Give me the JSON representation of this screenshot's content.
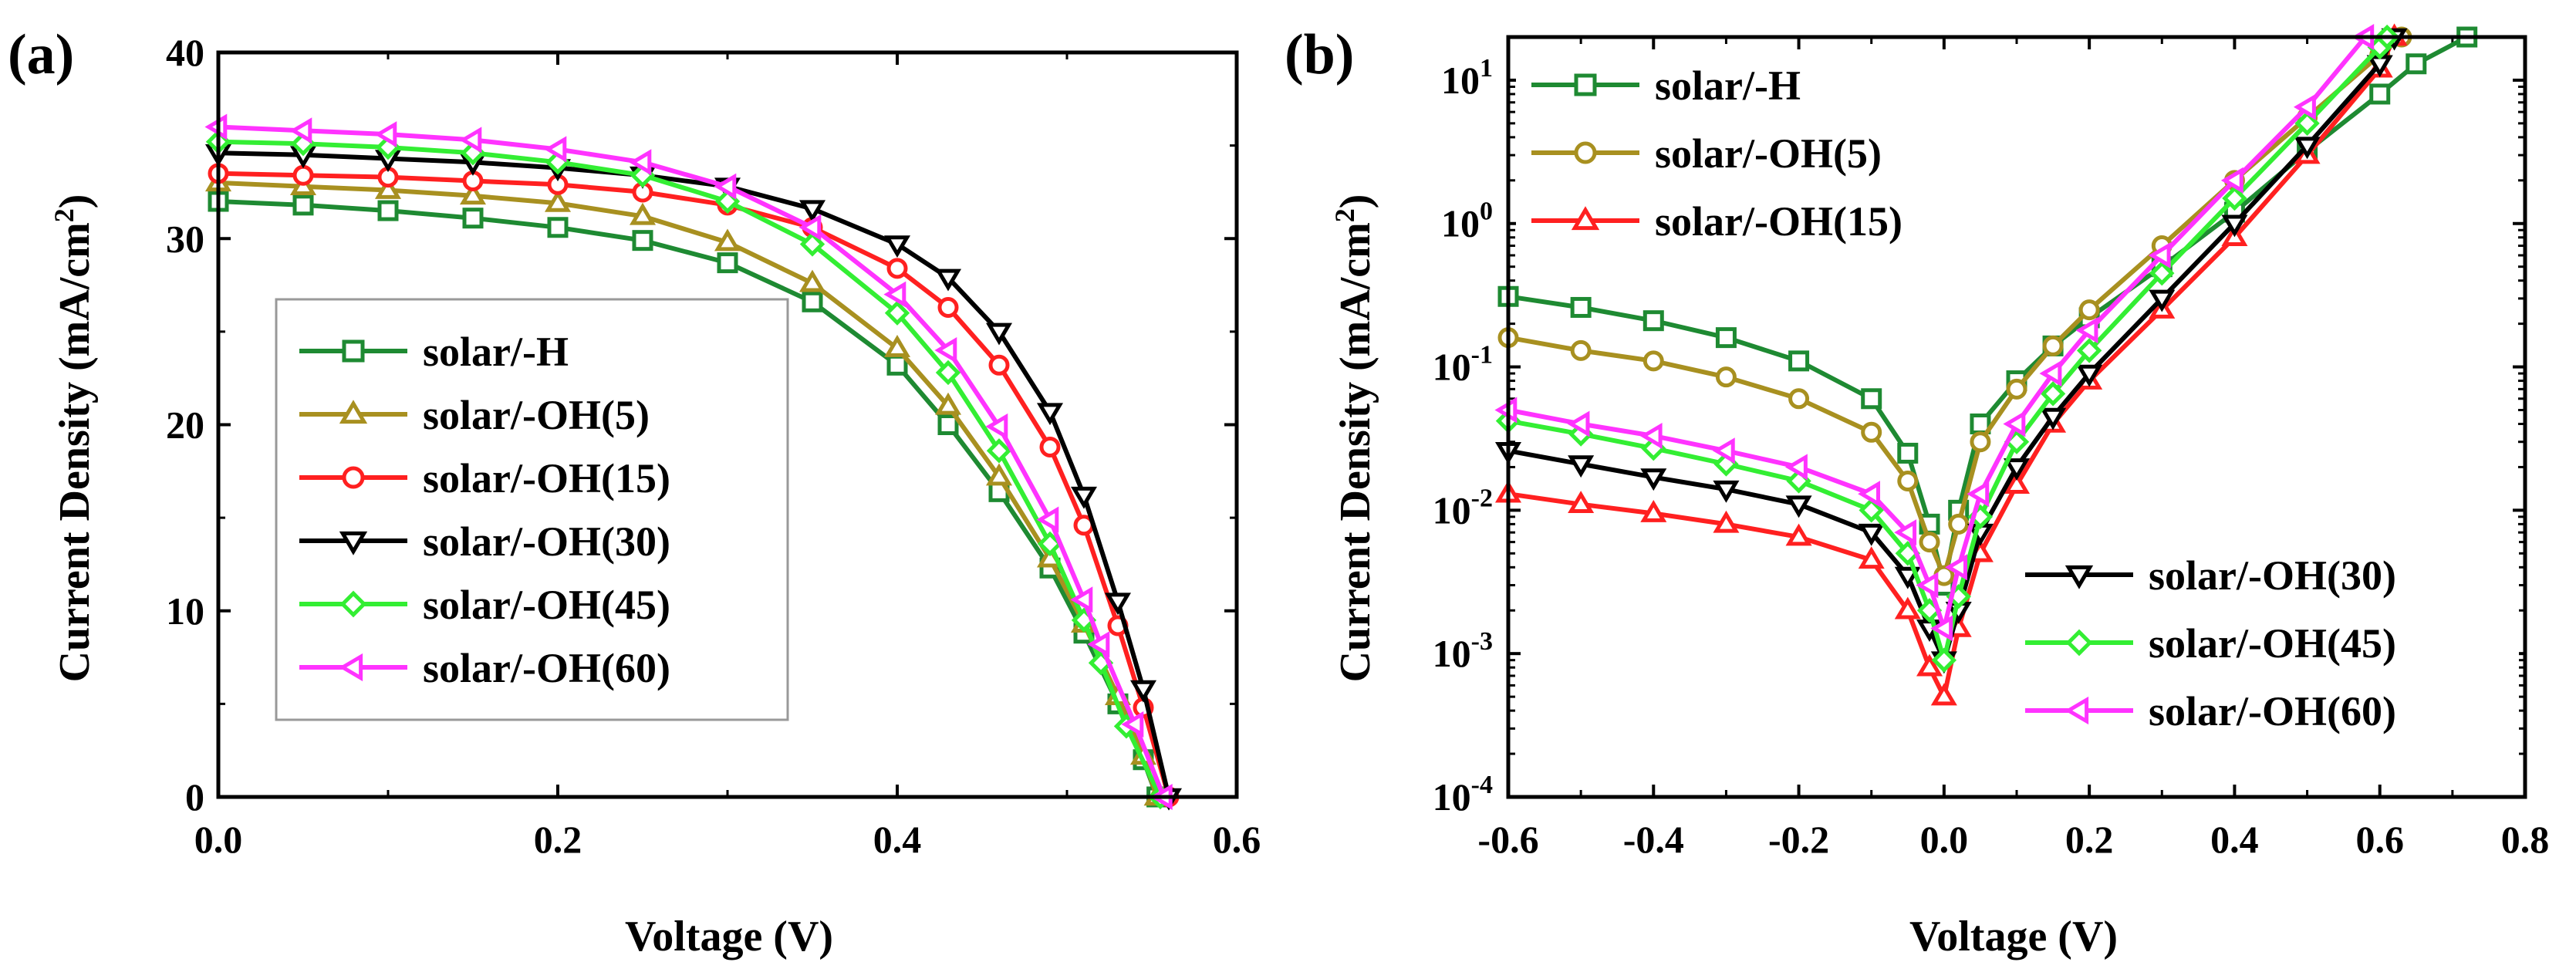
{
  "figure": {
    "panel_a_label": "(a)",
    "panel_b_label": "(b)"
  },
  "chart_data": [
    {
      "id": "a",
      "type": "line",
      "title": "",
      "panel_label": "(a)",
      "xlabel": "Voltage (V)",
      "ylabel": "Current Density (mA/cm",
      "ylabel_sup": "2",
      "ylabel_close": ")",
      "xlim": [
        0.0,
        0.6
      ],
      "ylim": [
        0,
        40
      ],
      "xticks": [
        0.0,
        0.2,
        0.4,
        0.6
      ],
      "xtick_labels": [
        "0.0",
        "0.2",
        "0.4",
        "0.6"
      ],
      "yticks": [
        0,
        10,
        20,
        30,
        40
      ],
      "ytick_labels": [
        "0",
        "10",
        "20",
        "30",
        "40"
      ],
      "grid": false,
      "legend_position": "center-left",
      "series": [
        {
          "name": "solar/-H",
          "color": "#1e8a32",
          "marker": "square",
          "x": [
            0.0,
            0.05,
            0.1,
            0.15,
            0.2,
            0.25,
            0.3,
            0.35,
            0.4,
            0.43,
            0.46,
            0.49,
            0.51,
            0.53,
            0.545,
            0.553
          ],
          "y": [
            32.0,
            31.8,
            31.5,
            31.1,
            30.6,
            29.9,
            28.7,
            26.6,
            23.2,
            20.0,
            16.4,
            12.3,
            8.8,
            5.0,
            2.0,
            0
          ]
        },
        {
          "name": "solar/-OH(5)",
          "color": "#a89020",
          "marker": "triangle-up",
          "x": [
            0.0,
            0.05,
            0.1,
            0.15,
            0.2,
            0.25,
            0.3,
            0.35,
            0.4,
            0.43,
            0.46,
            0.49,
            0.51,
            0.53,
            0.545,
            0.553
          ],
          "y": [
            33.0,
            32.8,
            32.6,
            32.3,
            31.9,
            31.2,
            29.8,
            27.6,
            24.1,
            21.0,
            17.2,
            12.8,
            9.3,
            5.4,
            2.2,
            0
          ]
        },
        {
          "name": "solar/-OH(15)",
          "color": "#ff2020",
          "marker": "circle",
          "x": [
            0.0,
            0.05,
            0.1,
            0.15,
            0.2,
            0.25,
            0.3,
            0.35,
            0.4,
            0.43,
            0.46,
            0.49,
            0.51,
            0.53,
            0.545,
            0.56
          ],
          "y": [
            33.5,
            33.4,
            33.3,
            33.1,
            32.9,
            32.5,
            31.8,
            30.6,
            28.4,
            26.3,
            23.2,
            18.8,
            14.6,
            9.2,
            4.8,
            0
          ]
        },
        {
          "name": "solar/-OH(30)",
          "color": "#000000",
          "marker": "triangle-down",
          "x": [
            0.0,
            0.05,
            0.1,
            0.15,
            0.2,
            0.25,
            0.3,
            0.35,
            0.4,
            0.43,
            0.46,
            0.49,
            0.51,
            0.53,
            0.545,
            0.56
          ],
          "y": [
            34.6,
            34.5,
            34.3,
            34.1,
            33.8,
            33.4,
            32.8,
            31.6,
            29.7,
            27.9,
            25.0,
            20.7,
            16.2,
            10.5,
            5.8,
            0
          ]
        },
        {
          "name": "solar/-OH(45)",
          "color": "#33ee33",
          "marker": "diamond",
          "x": [
            0.0,
            0.05,
            0.1,
            0.15,
            0.2,
            0.25,
            0.3,
            0.35,
            0.4,
            0.43,
            0.46,
            0.49,
            0.51,
            0.52,
            0.535,
            0.555
          ],
          "y": [
            35.2,
            35.1,
            34.9,
            34.6,
            34.1,
            33.4,
            32.0,
            29.7,
            26.0,
            22.8,
            18.6,
            13.6,
            9.5,
            7.2,
            3.8,
            0
          ]
        },
        {
          "name": "solar/-OH(60)",
          "color": "#ff33ff",
          "marker": "triangle-left",
          "x": [
            0.0,
            0.05,
            0.1,
            0.15,
            0.2,
            0.25,
            0.3,
            0.35,
            0.4,
            0.43,
            0.46,
            0.49,
            0.51,
            0.52,
            0.54,
            0.557
          ],
          "y": [
            36.0,
            35.8,
            35.6,
            35.3,
            34.8,
            34.1,
            32.8,
            30.6,
            27.0,
            24.0,
            19.9,
            14.9,
            10.6,
            8.2,
            3.9,
            0
          ]
        }
      ]
    },
    {
      "id": "b",
      "type": "line",
      "title": "",
      "panel_label": "(b)",
      "xlabel": "Voltage (V)",
      "ylabel": "Current Density (mA/cm",
      "ylabel_sup": "2",
      "ylabel_close": ")",
      "yscale": "log",
      "xlim": [
        -0.6,
        0.8
      ],
      "ylim": [
        0.0001,
        20
      ],
      "xticks": [
        -0.6,
        -0.4,
        -0.2,
        0.0,
        0.2,
        0.4,
        0.6,
        0.8
      ],
      "xtick_labels": [
        "-0.6",
        "-0.4",
        "-0.2",
        "0.0",
        "0.2",
        "0.4",
        "0.6",
        "0.8"
      ],
      "yticks": [
        0.0001,
        0.001,
        0.01,
        0.1,
        1,
        10
      ],
      "ytick_labels": [
        {
          "base": "10",
          "exp": "-4"
        },
        {
          "base": "10",
          "exp": "-3"
        },
        {
          "base": "10",
          "exp": "-2"
        },
        {
          "base": "10",
          "exp": "-1"
        },
        {
          "base": "10",
          "exp": "0"
        },
        {
          "base": "10",
          "exp": "1"
        }
      ],
      "grid": false,
      "legend_position": "top-left and bottom-right",
      "series": [
        {
          "name": "solar/-H",
          "color": "#1e8a32",
          "marker": "square",
          "x": [
            -0.6,
            -0.5,
            -0.4,
            -0.3,
            -0.2,
            -0.1,
            -0.05,
            -0.02,
            0.0,
            0.02,
            0.05,
            0.1,
            0.15,
            0.2,
            0.3,
            0.4,
            0.5,
            0.6,
            0.65,
            0.72
          ],
          "y": [
            0.31,
            0.26,
            0.21,
            0.16,
            0.11,
            0.06,
            0.025,
            0.008,
            0.003,
            0.01,
            0.04,
            0.08,
            0.14,
            0.22,
            0.5,
            1.2,
            3.2,
            8.0,
            13.0,
            20.0
          ]
        },
        {
          "name": "solar/-OH(5)",
          "color": "#a89020",
          "marker": "circle",
          "x": [
            -0.6,
            -0.5,
            -0.4,
            -0.3,
            -0.2,
            -0.1,
            -0.05,
            -0.02,
            0.0,
            0.02,
            0.05,
            0.1,
            0.15,
            0.2,
            0.3,
            0.4,
            0.5,
            0.6,
            0.63
          ],
          "y": [
            0.16,
            0.13,
            0.11,
            0.085,
            0.06,
            0.035,
            0.016,
            0.006,
            0.0035,
            0.008,
            0.03,
            0.07,
            0.14,
            0.25,
            0.7,
            2.0,
            5.5,
            15.0,
            20.0
          ]
        },
        {
          "name": "solar/-OH(15)",
          "color": "#ff2020",
          "marker": "triangle-up",
          "x": [
            -0.6,
            -0.5,
            -0.4,
            -0.3,
            -0.2,
            -0.1,
            -0.05,
            -0.02,
            0.0,
            0.02,
            0.05,
            0.1,
            0.15,
            0.2,
            0.3,
            0.4,
            0.5,
            0.6,
            0.62
          ],
          "y": [
            0.013,
            0.011,
            0.0095,
            0.008,
            0.0065,
            0.0045,
            0.002,
            0.0008,
            0.0005,
            0.0015,
            0.005,
            0.015,
            0.04,
            0.08,
            0.25,
            0.8,
            3.0,
            12.0,
            20.0
          ]
        },
        {
          "name": "solar/-OH(30)",
          "color": "#000000",
          "marker": "triangle-down",
          "x": [
            -0.6,
            -0.5,
            -0.4,
            -0.3,
            -0.2,
            -0.1,
            -0.05,
            -0.02,
            0.0,
            0.02,
            0.05,
            0.1,
            0.15,
            0.2,
            0.3,
            0.4,
            0.5,
            0.6,
            0.62
          ],
          "y": [
            0.026,
            0.021,
            0.017,
            0.014,
            0.011,
            0.007,
            0.0035,
            0.0015,
            0.0009,
            0.002,
            0.007,
            0.02,
            0.045,
            0.09,
            0.3,
            1.0,
            3.5,
            13.0,
            20.0
          ]
        },
        {
          "name": "solar/-OH(45)",
          "color": "#33ee33",
          "marker": "diamond",
          "x": [
            -0.6,
            -0.5,
            -0.4,
            -0.3,
            -0.2,
            -0.1,
            -0.05,
            -0.02,
            0.0,
            0.02,
            0.05,
            0.1,
            0.15,
            0.2,
            0.3,
            0.4,
            0.5,
            0.6,
            0.61
          ],
          "y": [
            0.042,
            0.034,
            0.027,
            0.021,
            0.016,
            0.01,
            0.005,
            0.002,
            0.0009,
            0.0025,
            0.009,
            0.03,
            0.065,
            0.13,
            0.45,
            1.5,
            5.0,
            17.0,
            20.0
          ]
        },
        {
          "name": "solar/-OH(60)",
          "color": "#ff33ff",
          "marker": "triangle-left",
          "x": [
            -0.6,
            -0.5,
            -0.4,
            -0.3,
            -0.2,
            -0.1,
            -0.05,
            -0.02,
            0.0,
            0.02,
            0.05,
            0.1,
            0.15,
            0.2,
            0.3,
            0.4,
            0.5,
            0.58
          ],
          "y": [
            0.05,
            0.04,
            0.033,
            0.026,
            0.02,
            0.013,
            0.007,
            0.003,
            0.0015,
            0.004,
            0.013,
            0.04,
            0.09,
            0.18,
            0.6,
            2.0,
            6.5,
            20.0
          ]
        }
      ]
    }
  ]
}
